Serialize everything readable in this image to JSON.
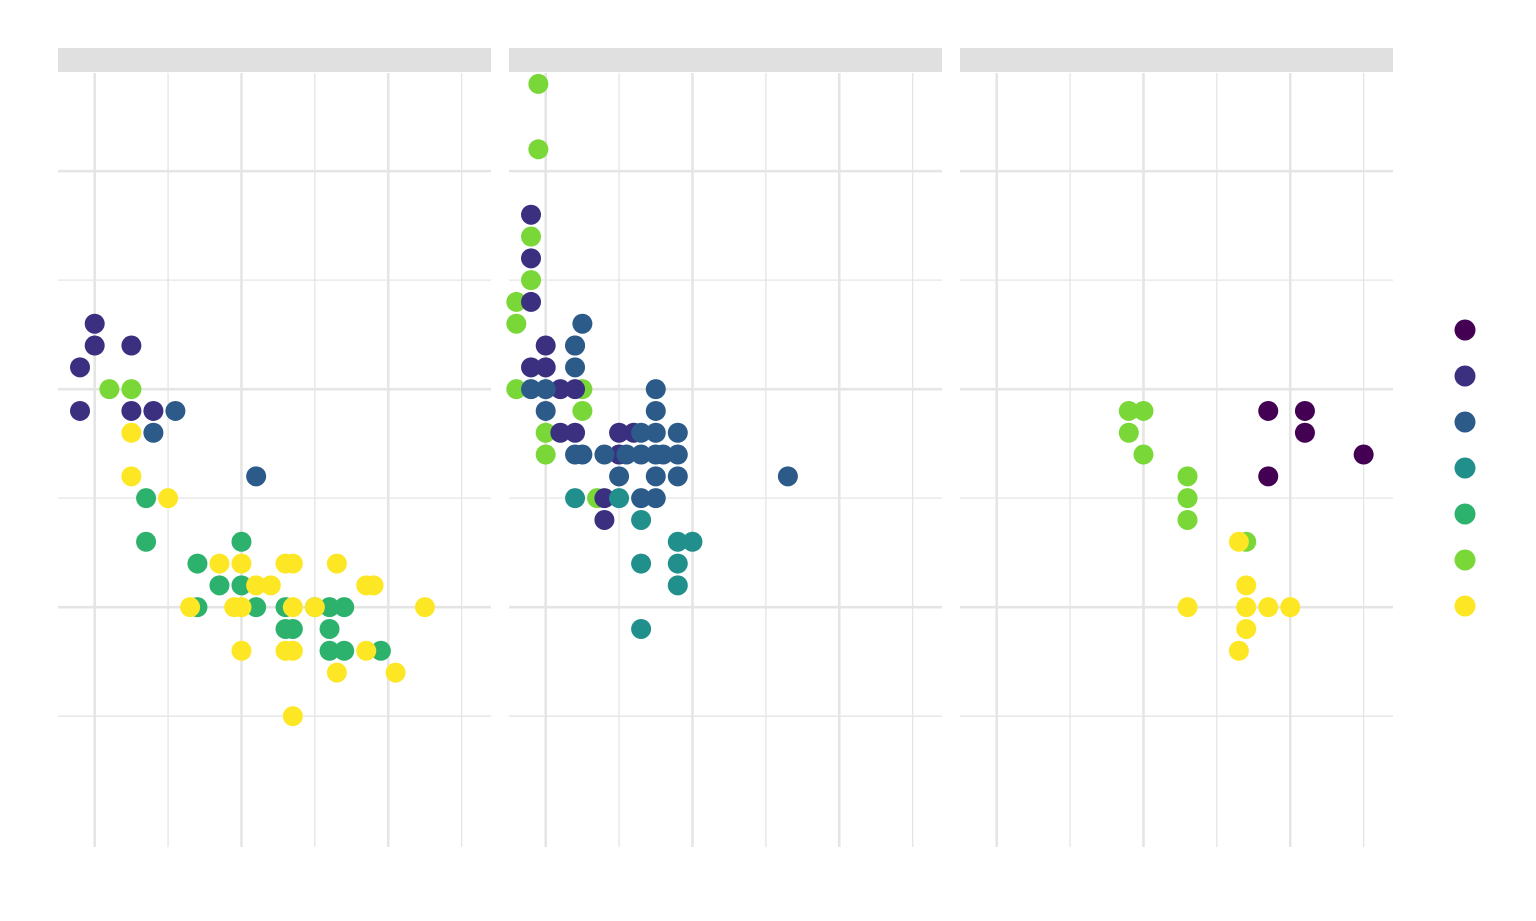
{
  "chart_data": {
    "type": "scatter",
    "layout": "faceted-3-panels",
    "grid": true,
    "legend_placement": "right",
    "x_range": [
      -0.25,
      2.7
    ],
    "x_gridlines_major": [
      0,
      1,
      2
    ],
    "x_gridlines_minor": [
      0.5,
      1.5,
      2.5
    ],
    "y_range": [
      0.9,
      4.45
    ],
    "y_gridlines_major": [
      2,
      3,
      4
    ],
    "y_gridlines_minor": [
      1.5,
      2.5,
      3.5
    ],
    "groups": [
      {
        "key": "g1",
        "color": "#440154"
      },
      {
        "key": "g2",
        "color": "#3b2f80"
      },
      {
        "key": "g3",
        "color": "#2c5b8a"
      },
      {
        "key": "g4",
        "color": "#21908c"
      },
      {
        "key": "g5",
        "color": "#2db26e"
      },
      {
        "key": "g6",
        "color": "#7ad738"
      },
      {
        "key": "g7",
        "color": "#fde725"
      }
    ],
    "panels": [
      {
        "strip_label": "",
        "points": [
          {
            "x": -0.1,
            "y": 3.1,
            "g": "g2"
          },
          {
            "x": -0.1,
            "y": 2.9,
            "g": "g2"
          },
          {
            "x": 0,
            "y": 3.2,
            "g": "g2"
          },
          {
            "x": 0,
            "y": 3.3,
            "g": "g2"
          },
          {
            "x": 0.25,
            "y": 3.2,
            "g": "g2"
          },
          {
            "x": 0.25,
            "y": 2.9,
            "g": "g2"
          },
          {
            "x": 0.4,
            "y": 2.9,
            "g": "g2"
          },
          {
            "x": 0.55,
            "y": 2.9,
            "g": "g3"
          },
          {
            "x": 0.4,
            "y": 2.8,
            "g": "g3"
          },
          {
            "x": 1.1,
            "y": 2.6,
            "g": "g3"
          },
          {
            "x": 0.1,
            "y": 3.0,
            "g": "g6"
          },
          {
            "x": 0.25,
            "y": 3.0,
            "g": "g6"
          },
          {
            "x": 0.25,
            "y": 2.8,
            "g": "g7"
          },
          {
            "x": 0.25,
            "y": 2.6,
            "g": "g7"
          },
          {
            "x": 0.5,
            "y": 2.5,
            "g": "g7"
          },
          {
            "x": 0.35,
            "y": 2.5,
            "g": "g5"
          },
          {
            "x": 0.35,
            "y": 2.3,
            "g": "g5"
          },
          {
            "x": 1.0,
            "y": 2.3,
            "g": "g5"
          },
          {
            "x": 0.7,
            "y": 2.2,
            "g": "g5"
          },
          {
            "x": 0.85,
            "y": 2.1,
            "g": "g5"
          },
          {
            "x": 1.0,
            "y": 2.1,
            "g": "g5"
          },
          {
            "x": 0.7,
            "y": 2.0,
            "g": "g5"
          },
          {
            "x": 1.1,
            "y": 2.0,
            "g": "g5"
          },
          {
            "x": 1.3,
            "y": 2.0,
            "g": "g5"
          },
          {
            "x": 1.5,
            "y": 2.0,
            "g": "g5"
          },
          {
            "x": 1.6,
            "y": 2.0,
            "g": "g5"
          },
          {
            "x": 1.7,
            "y": 2.0,
            "g": "g5"
          },
          {
            "x": 1.3,
            "y": 1.9,
            "g": "g5"
          },
          {
            "x": 1.35,
            "y": 1.9,
            "g": "g5"
          },
          {
            "x": 1.6,
            "y": 1.9,
            "g": "g5"
          },
          {
            "x": 1.6,
            "y": 1.8,
            "g": "g5"
          },
          {
            "x": 1.7,
            "y": 1.8,
            "g": "g5"
          },
          {
            "x": 1.95,
            "y": 1.8,
            "g": "g5"
          },
          {
            "x": 0.85,
            "y": 2.2,
            "g": "g7"
          },
          {
            "x": 1.0,
            "y": 2.2,
            "g": "g7"
          },
          {
            "x": 1.3,
            "y": 2.2,
            "g": "g7"
          },
          {
            "x": 1.35,
            "y": 2.2,
            "g": "g7"
          },
          {
            "x": 1.65,
            "y": 2.2,
            "g": "g7"
          },
          {
            "x": 1.1,
            "y": 2.1,
            "g": "g7"
          },
          {
            "x": 1.2,
            "y": 2.1,
            "g": "g7"
          },
          {
            "x": 1.85,
            "y": 2.1,
            "g": "g7"
          },
          {
            "x": 1.9,
            "y": 2.1,
            "g": "g7"
          },
          {
            "x": 0.65,
            "y": 2.0,
            "g": "g7"
          },
          {
            "x": 0.95,
            "y": 2.0,
            "g": "g7"
          },
          {
            "x": 1.0,
            "y": 2.0,
            "g": "g7"
          },
          {
            "x": 1.35,
            "y": 2.0,
            "g": "g7"
          },
          {
            "x": 1.5,
            "y": 2.0,
            "g": "g7"
          },
          {
            "x": 2.25,
            "y": 2.0,
            "g": "g7"
          },
          {
            "x": 1.0,
            "y": 1.8,
            "g": "g7"
          },
          {
            "x": 1.3,
            "y": 1.8,
            "g": "g7"
          },
          {
            "x": 1.35,
            "y": 1.8,
            "g": "g7"
          },
          {
            "x": 1.85,
            "y": 1.8,
            "g": "g7"
          },
          {
            "x": 1.65,
            "y": 1.7,
            "g": "g7"
          },
          {
            "x": 2.05,
            "y": 1.7,
            "g": "g7"
          },
          {
            "x": 1.35,
            "y": 1.5,
            "g": "g7"
          }
        ]
      },
      {
        "strip_label": "",
        "points": [
          {
            "x": -0.05,
            "y": 4.4,
            "g": "g6"
          },
          {
            "x": -0.05,
            "y": 4.1,
            "g": "g6"
          },
          {
            "x": -0.1,
            "y": 3.7,
            "g": "g6"
          },
          {
            "x": -0.1,
            "y": 3.5,
            "g": "g6"
          },
          {
            "x": -0.2,
            "y": 3.4,
            "g": "g6"
          },
          {
            "x": -0.2,
            "y": 3.3,
            "g": "g6"
          },
          {
            "x": -0.2,
            "y": 3.0,
            "g": "g6"
          },
          {
            "x": 0.25,
            "y": 3.0,
            "g": "g6"
          },
          {
            "x": 0.25,
            "y": 2.9,
            "g": "g6"
          },
          {
            "x": 0.0,
            "y": 2.8,
            "g": "g6"
          },
          {
            "x": 0.0,
            "y": 2.7,
            "g": "g6"
          },
          {
            "x": 0.35,
            "y": 2.5,
            "g": "g6"
          },
          {
            "x": -0.1,
            "y": 3.8,
            "g": "g2"
          },
          {
            "x": -0.1,
            "y": 3.6,
            "g": "g2"
          },
          {
            "x": -0.1,
            "y": 3.4,
            "g": "g2"
          },
          {
            "x": 0,
            "y": 3.2,
            "g": "g2"
          },
          {
            "x": 0.2,
            "y": 3.2,
            "g": "g2"
          },
          {
            "x": -0.1,
            "y": 3.1,
            "g": "g2"
          },
          {
            "x": 0,
            "y": 3.1,
            "g": "g2"
          },
          {
            "x": 0.1,
            "y": 3.0,
            "g": "g2"
          },
          {
            "x": 0.2,
            "y": 3.0,
            "g": "g2"
          },
          {
            "x": 0.1,
            "y": 2.8,
            "g": "g2"
          },
          {
            "x": 0.2,
            "y": 2.8,
            "g": "g2"
          },
          {
            "x": 0.5,
            "y": 2.8,
            "g": "g2"
          },
          {
            "x": 0.6,
            "y": 2.8,
            "g": "g2"
          },
          {
            "x": 0.5,
            "y": 2.7,
            "g": "g2"
          },
          {
            "x": 0.4,
            "y": 2.5,
            "g": "g2"
          },
          {
            "x": 0.4,
            "y": 2.4,
            "g": "g2"
          },
          {
            "x": 0.25,
            "y": 3.3,
            "g": "g3"
          },
          {
            "x": 0.2,
            "y": 3.2,
            "g": "g3"
          },
          {
            "x": 0.2,
            "y": 3.1,
            "g": "g3"
          },
          {
            "x": -0.1,
            "y": 3.0,
            "g": "g3"
          },
          {
            "x": 0.0,
            "y": 3.0,
            "g": "g3"
          },
          {
            "x": 0.0,
            "y": 2.9,
            "g": "g3"
          },
          {
            "x": 0.2,
            "y": 2.7,
            "g": "g3"
          },
          {
            "x": 0.25,
            "y": 2.7,
            "g": "g3"
          },
          {
            "x": 0.4,
            "y": 2.7,
            "g": "g3"
          },
          {
            "x": 0.55,
            "y": 2.7,
            "g": "g3"
          },
          {
            "x": 0.5,
            "y": 2.6,
            "g": "g3"
          },
          {
            "x": 0.75,
            "y": 2.9,
            "g": "g3"
          },
          {
            "x": 0.65,
            "y": 2.8,
            "g": "g3"
          },
          {
            "x": 0.75,
            "y": 2.8,
            "g": "g3"
          },
          {
            "x": 0.9,
            "y": 2.8,
            "g": "g3"
          },
          {
            "x": 0.65,
            "y": 2.7,
            "g": "g3"
          },
          {
            "x": 0.75,
            "y": 2.7,
            "g": "g3"
          },
          {
            "x": 0.8,
            "y": 2.7,
            "g": "g3"
          },
          {
            "x": 0.9,
            "y": 2.7,
            "g": "g3"
          },
          {
            "x": 0.75,
            "y": 2.6,
            "g": "g3"
          },
          {
            "x": 0.65,
            "y": 2.5,
            "g": "g3"
          },
          {
            "x": 0.75,
            "y": 2.5,
            "g": "g3"
          },
          {
            "x": 0.9,
            "y": 2.6,
            "g": "g3"
          },
          {
            "x": 0.75,
            "y": 3.0,
            "g": "g3"
          },
          {
            "x": 1.65,
            "y": 2.6,
            "g": "g3"
          },
          {
            "x": 0.2,
            "y": 2.5,
            "g": "g4"
          },
          {
            "x": 0.5,
            "y": 2.5,
            "g": "g4"
          },
          {
            "x": 0.65,
            "y": 2.4,
            "g": "g4"
          },
          {
            "x": 0.9,
            "y": 2.3,
            "g": "g4"
          },
          {
            "x": 1.0,
            "y": 2.3,
            "g": "g4"
          },
          {
            "x": 0.65,
            "y": 2.2,
            "g": "g4"
          },
          {
            "x": 0.9,
            "y": 2.2,
            "g": "g4"
          },
          {
            "x": 0.9,
            "y": 2.1,
            "g": "g4"
          },
          {
            "x": 0.65,
            "y": 1.9,
            "g": "g4"
          }
        ]
      },
      {
        "strip_label": "",
        "points": [
          {
            "x": 0.9,
            "y": 2.9,
            "g": "g6"
          },
          {
            "x": 1.0,
            "y": 2.9,
            "g": "g6"
          },
          {
            "x": 0.9,
            "y": 2.8,
            "g": "g6"
          },
          {
            "x": 1.0,
            "y": 2.7,
            "g": "g6"
          },
          {
            "x": 1.3,
            "y": 2.6,
            "g": "g6"
          },
          {
            "x": 1.3,
            "y": 2.5,
            "g": "g6"
          },
          {
            "x": 1.3,
            "y": 2.4,
            "g": "g6"
          },
          {
            "x": 1.7,
            "y": 2.3,
            "g": "g6"
          },
          {
            "x": 1.65,
            "y": 2.3,
            "g": "g7"
          },
          {
            "x": 1.7,
            "y": 2.1,
            "g": "g7"
          },
          {
            "x": 1.3,
            "y": 2.0,
            "g": "g7"
          },
          {
            "x": 1.7,
            "y": 2.0,
            "g": "g7"
          },
          {
            "x": 1.85,
            "y": 2.0,
            "g": "g7"
          },
          {
            "x": 2.0,
            "y": 2.0,
            "g": "g7"
          },
          {
            "x": 1.7,
            "y": 1.9,
            "g": "g7"
          },
          {
            "x": 1.65,
            "y": 1.8,
            "g": "g7"
          },
          {
            "x": 1.85,
            "y": 2.9,
            "g": "g1"
          },
          {
            "x": 2.1,
            "y": 2.9,
            "g": "g1"
          },
          {
            "x": 2.1,
            "y": 2.8,
            "g": "g1"
          },
          {
            "x": 1.85,
            "y": 2.6,
            "g": "g1"
          },
          {
            "x": 2.5,
            "y": 2.7,
            "g": "g1"
          }
        ]
      }
    ]
  }
}
